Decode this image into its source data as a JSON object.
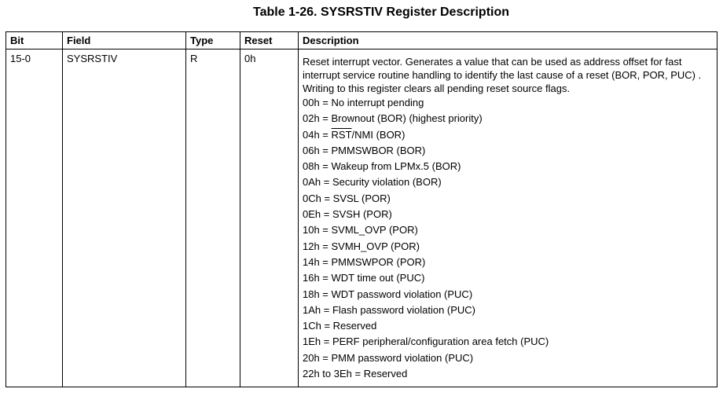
{
  "title": "Table 1-26. SYSRSTIV Register Description",
  "headers": [
    "Bit",
    "Field",
    "Type",
    "Reset",
    "Description"
  ],
  "row": {
    "bit": "15-0",
    "field": "SYSRSTIV",
    "type": "R",
    "reset": "0h",
    "description": "Reset interrupt vector. Generates a value that can be used as address offset for fast interrupt service routine handling to identify the last cause of a reset (BOR, POR, PUC) . Writing to this register clears all pending reset source flags.",
    "values": [
      "00h = No interrupt pending",
      "02h = Brownout (BOR) (highest priority)",
      {
        "prefix": "04h = ",
        "overline": "RST",
        "suffix": "/NMI (BOR)"
      },
      "06h = PMMSWBOR (BOR)",
      "08h = Wakeup from LPMx.5 (BOR)",
      "0Ah = Security violation (BOR)",
      "0Ch = SVSL (POR)",
      "0Eh = SVSH (POR)",
      "10h = SVML_OVP (POR)",
      "12h = SVMH_OVP (POR)",
      "14h = PMMSWPOR (POR)",
      "16h = WDT time out (PUC)",
      "18h = WDT password violation (PUC)",
      "1Ah = Flash password violation (PUC)",
      "1Ch = Reserved",
      "1Eh = PERF peripheral/configuration area fetch (PUC)",
      "20h = PMM password violation (PUC)",
      "22h to 3Eh = Reserved"
    ]
  }
}
